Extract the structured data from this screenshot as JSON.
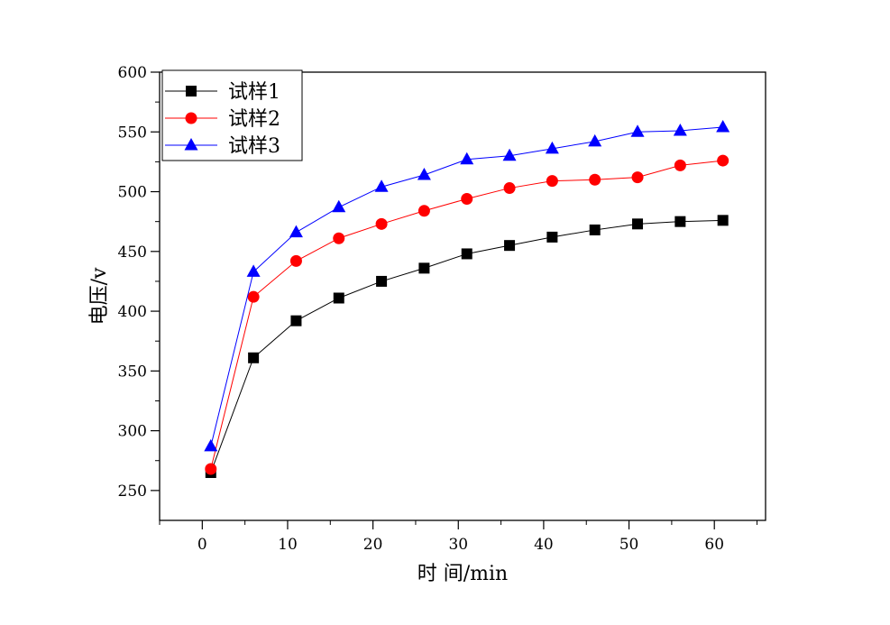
{
  "chart_data": {
    "type": "line",
    "title": "",
    "xlabel": "时 间/min",
    "ylabel": "电压/v",
    "xlim": [
      -5,
      66
    ],
    "ylim": [
      225,
      600
    ],
    "xticks": [
      0,
      10,
      20,
      30,
      40,
      50,
      60
    ],
    "yticks": [
      250,
      300,
      350,
      400,
      450,
      500,
      550,
      600
    ],
    "grid": false,
    "legend_position": "top-left",
    "x": [
      1,
      6,
      11,
      16,
      21,
      26,
      31,
      36,
      41,
      46,
      51,
      56,
      61
    ],
    "series": [
      {
        "name": "试样1",
        "color": "#000000",
        "marker": "square",
        "values": [
          265,
          361,
          392,
          411,
          425,
          436,
          448,
          455,
          462,
          468,
          473,
          475,
          476
        ]
      },
      {
        "name": "试样2",
        "color": "#ff0000",
        "marker": "circle",
        "values": [
          268,
          412,
          442,
          461,
          473,
          484,
          494,
          503,
          509,
          510,
          512,
          522,
          526
        ]
      },
      {
        "name": "试样3",
        "color": "#0000ff",
        "marker": "triangle",
        "values": [
          287,
          433,
          466,
          487,
          504,
          514,
          527,
          530,
          536,
          542,
          550,
          551,
          554
        ]
      }
    ]
  }
}
